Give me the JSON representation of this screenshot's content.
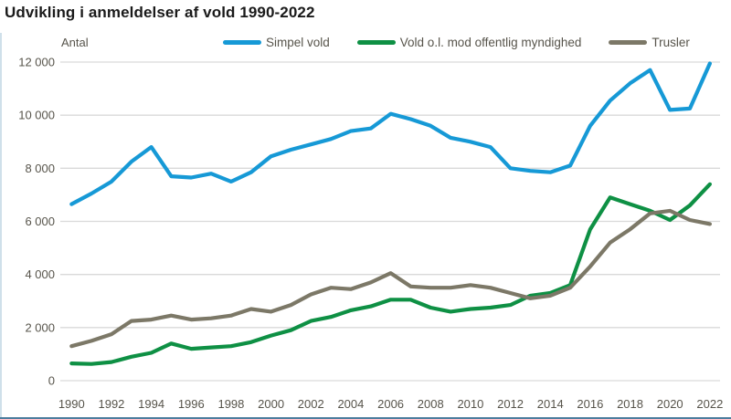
{
  "title": "Udvikling i anmeldelser af vold 1990-2022",
  "y_axis_label": "Antal",
  "colors": {
    "title_text": "#1a1a1a",
    "axis_text": "#57544b",
    "gridline": "#d9d9d9",
    "left_rule": "#cfe0ea",
    "bottom_rule": "#4d7d9e",
    "background": "#ffffff"
  },
  "chart_data": {
    "type": "line",
    "title": "Udvikling i anmeldelser af vold 1990-2022",
    "xlabel": "",
    "ylabel": "Antal",
    "x": [
      1990,
      1991,
      1992,
      1993,
      1994,
      1995,
      1996,
      1997,
      1998,
      1999,
      2000,
      2001,
      2002,
      2003,
      2004,
      2005,
      2006,
      2007,
      2008,
      2009,
      2010,
      2011,
      2012,
      2013,
      2014,
      2015,
      2016,
      2017,
      2018,
      2019,
      2020,
      2021,
      2022
    ],
    "series": [
      {
        "name": "Simpel vold",
        "color": "#1699d6",
        "values": [
          6650,
          7050,
          7500,
          8250,
          8800,
          7700,
          7650,
          7800,
          7500,
          7850,
          8450,
          8700,
          8900,
          9100,
          9400,
          9500,
          10050,
          9850,
          9600,
          9150,
          9000,
          8800,
          8000,
          7900,
          7850,
          8100,
          9600,
          10550,
          11200,
          11700,
          10200,
          10250,
          11950
        ]
      },
      {
        "name": "Vold o.l. mod offentlig myndighed",
        "color": "#0e9044",
        "values": [
          650,
          630,
          700,
          900,
          1050,
          1400,
          1200,
          1250,
          1300,
          1450,
          1700,
          1900,
          2250,
          2400,
          2650,
          2800,
          3050,
          3050,
          2750,
          2600,
          2700,
          2750,
          2850,
          3200,
          3300,
          3600,
          5700,
          6900,
          6650,
          6400,
          6050,
          6600,
          7400
        ]
      },
      {
        "name": "Trusler",
        "color": "#7c7867",
        "values": [
          1300,
          1500,
          1750,
          2250,
          2300,
          2450,
          2300,
          2350,
          2450,
          2700,
          2600,
          2850,
          3250,
          3500,
          3450,
          3700,
          4050,
          3550,
          3500,
          3500,
          3600,
          3500,
          3300,
          3100,
          3200,
          3500,
          4300,
          5200,
          5700,
          6300,
          6400,
          6050,
          5900
        ]
      }
    ],
    "ylim": [
      0,
      12000
    ],
    "ytick_step": 2000,
    "xtick_step": 2,
    "grid": "horizontal-only",
    "legend_position": "top"
  }
}
